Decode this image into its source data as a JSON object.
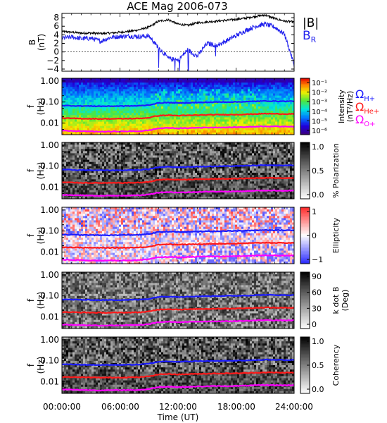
{
  "title": "ACE Mag 2006-073",
  "colors": {
    "b_total": "#000000",
    "b_radial": "#2222ee",
    "h_plus": "#1c1cff",
    "he_plus": "#ff1a1a",
    "o_plus": "#ff00ff"
  },
  "legend": {
    "b_total": "|B|",
    "b_radial_main": "B",
    "b_radial_sub": "R",
    "omega": "Ω",
    "h_plus_sub": "H+",
    "he_plus_sub": "He+",
    "o_plus_sub": "O+"
  },
  "x_axis": {
    "label": "Time (UT)",
    "ticks": [
      "00:00:00",
      "06:00:00",
      "12:00:00",
      "18:00:00",
      "24:00:00"
    ]
  },
  "chart_data": [
    {
      "type": "line",
      "panel": "magnetic-field",
      "ylabel_line1": "B",
      "ylabel_line2": "(nT)",
      "ylim": [
        -4.5,
        9
      ],
      "yticks": [
        "8",
        "6",
        "4",
        "2",
        "0",
        "−2",
        "−4"
      ],
      "x_hours": [
        0,
        1,
        2,
        3,
        4,
        5,
        6,
        7,
        8,
        9,
        10,
        11,
        12,
        13,
        14,
        15,
        16,
        17,
        18,
        19,
        20,
        21,
        22,
        23,
        24
      ],
      "series": [
        {
          "name": "|B|",
          "values": [
            4.8,
            4.6,
            4.4,
            4.4,
            4.3,
            4.4,
            4.6,
            4.8,
            5.2,
            5.8,
            7.2,
            7.5,
            6.5,
            6.2,
            6.8,
            7.0,
            7.2,
            7.4,
            7.6,
            7.9,
            8.3,
            8.6,
            7.8,
            7.2,
            7.0
          ]
        },
        {
          "name": "B",
          "values": [
            3.2,
            3.5,
            3.1,
            3.2,
            2.5,
            3.4,
            3.6,
            3.7,
            3.6,
            3.7,
            1.0,
            -1.5,
            -2.0,
            0.5,
            -1.0,
            2.0,
            1.5,
            2.6,
            3.8,
            5.0,
            6.0,
            6.5,
            5.8,
            4.2,
            -3.0
          ]
        }
      ]
    },
    {
      "type": "heatmap",
      "panel": "intensity",
      "ylabel_line1": "f",
      "ylabel_line2": "(Hz)",
      "yticks": [
        "1.00",
        "0.10",
        "0.01"
      ],
      "colorbar_ticks": [
        "10⁻¹",
        "10⁻²",
        "10⁻³",
        "10⁻⁴",
        "10⁻⁵",
        "10⁻⁶"
      ],
      "colorbar_label_line1": "Intensity",
      "colorbar_label_line2": "(nT²/Hz)"
    },
    {
      "type": "heatmap",
      "panel": "polarization",
      "ylabel_line1": "f",
      "ylabel_line2": "(Hz)",
      "yticks": [
        "1.00",
        "0.10",
        "0.01"
      ],
      "colorbar_ticks": [
        "1.0",
        "0.5",
        "0.0"
      ],
      "colorbar_label_line1": "% Polarization",
      "colorbar_label_line2": ""
    },
    {
      "type": "heatmap",
      "panel": "ellipticity",
      "ylabel_line1": "f",
      "ylabel_line2": "(Hz)",
      "yticks": [
        "1.00",
        "0.10",
        "0.01"
      ],
      "colorbar_ticks": [
        "1",
        "0",
        "−1"
      ],
      "colorbar_label_line1": "Ellipticity",
      "colorbar_label_line2": ""
    },
    {
      "type": "heatmap",
      "panel": "k-dot-b",
      "ylabel_line1": "f",
      "ylabel_line2": "(Hz)",
      "yticks": [
        "1.00",
        "0.10",
        "0.01"
      ],
      "colorbar_ticks": [
        "90",
        "60",
        "30",
        "0"
      ],
      "colorbar_label_line1": "k dot B",
      "colorbar_label_line2": "(Deg)"
    },
    {
      "type": "heatmap",
      "panel": "coherency",
      "ylabel_line1": "f",
      "ylabel_line2": "(Hz)",
      "yticks": [
        "1.00",
        "0.10",
        "0.01"
      ],
      "colorbar_ticks": [
        "1.0",
        "0.5",
        "0.0"
      ],
      "colorbar_label_line1": "Coherency",
      "colorbar_label_line2": ""
    }
  ],
  "gyro_lines": {
    "x_hours": [
      0,
      2,
      4,
      6,
      8,
      9,
      10,
      11,
      12,
      13,
      14,
      15,
      16,
      17,
      18,
      19,
      20,
      21,
      22,
      23,
      24
    ],
    "h_plus_hz": [
      0.068,
      0.065,
      0.063,
      0.064,
      0.066,
      0.072,
      0.09,
      0.094,
      0.09,
      0.092,
      0.095,
      0.097,
      0.099,
      0.1,
      0.101,
      0.104,
      0.108,
      0.112,
      0.11,
      0.108,
      0.11
    ],
    "he_plus_hz": [
      0.017,
      0.0163,
      0.0158,
      0.016,
      0.0165,
      0.018,
      0.0225,
      0.0235,
      0.0225,
      0.023,
      0.0238,
      0.0243,
      0.0248,
      0.025,
      0.0253,
      0.026,
      0.027,
      0.028,
      0.0275,
      0.027,
      0.0275
    ],
    "o_plus_hz": [
      0.0043,
      0.0041,
      0.0039,
      0.004,
      0.0041,
      0.0045,
      0.0056,
      0.0059,
      0.0056,
      0.0057,
      0.006,
      0.0061,
      0.0062,
      0.0062,
      0.0063,
      0.0065,
      0.0068,
      0.007,
      0.0069,
      0.0068,
      0.0069
    ]
  }
}
